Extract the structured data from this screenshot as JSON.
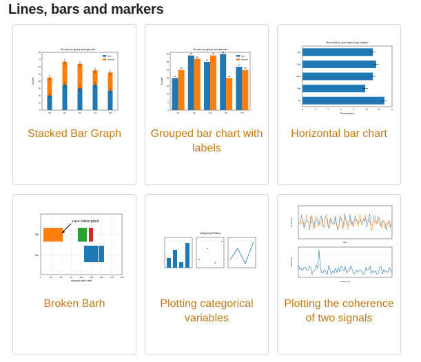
{
  "section": {
    "title": "Lines, bars and markers"
  },
  "cards": [
    {
      "caption": "Stacked Bar Graph",
      "thumb_title": "Scores by group and gender",
      "ylabel": "Scores",
      "legend": [
        "Men",
        "Women"
      ],
      "categories": [
        "G1",
        "G2",
        "G3",
        "G4",
        "G5"
      ],
      "yticks": [
        "0",
        "10",
        "20",
        "30",
        "40",
        "50",
        "60",
        "70",
        "80"
      ],
      "chart_data": {
        "type": "bar",
        "stacked": true,
        "categories": [
          "G1",
          "G2",
          "G3",
          "G4",
          "G5"
        ],
        "series": [
          {
            "name": "Men",
            "values": [
              20,
              35,
              30,
              35,
              27
            ]
          },
          {
            "name": "Women",
            "values": [
              25,
              32,
              34,
              20,
              25
            ]
          }
        ],
        "ylim": [
          0,
          80
        ]
      }
    },
    {
      "caption": "Grouped bar chart with labels",
      "thumb_title": "Scores by group and gender",
      "ylabel": "Scores",
      "legend": [
        "Men",
        "Women"
      ],
      "categories": [
        "G1",
        "G2",
        "G3",
        "G4",
        "G5"
      ],
      "yticks": [
        "0",
        "5",
        "10",
        "15",
        "20",
        "25",
        "30",
        "35"
      ],
      "chart_data": {
        "type": "bar",
        "categories": [
          "G1",
          "G2",
          "G3",
          "G4",
          "G5"
        ],
        "series": [
          {
            "name": "Men",
            "values": [
              20,
              34,
              30,
              35,
              27
            ]
          },
          {
            "name": "Women",
            "values": [
              25,
              32,
              34,
              20,
              25
            ]
          }
        ],
        "ylim": [
          0,
          36
        ]
      }
    },
    {
      "caption": "Horizontal bar chart",
      "thumb_title": "How fast do you want to go today?",
      "xlabel": "Performance",
      "categories": [
        "Tom",
        "Dick",
        "Harry",
        "Slim",
        "Jim"
      ],
      "xticks": [
        "0",
        "2",
        "4",
        "6",
        "8",
        "10",
        "12",
        "14"
      ],
      "chart_data": {
        "type": "bar",
        "orientation": "horizontal",
        "categories": [
          "Tom",
          "Dick",
          "Harry",
          "Slim",
          "Jim"
        ],
        "values": [
          11,
          11.5,
          11,
          9.8,
          12.8
        ],
        "xlim": [
          0,
          14
        ]
      }
    },
    {
      "caption": "Broken Barh",
      "annotation": "race interrupted",
      "xlabel": "seconds since start",
      "yticks": [
        "Bill",
        "Jim"
      ],
      "xticks": [
        "0",
        "25",
        "50",
        "75",
        "100",
        "125",
        "150",
        "175",
        "200"
      ]
    },
    {
      "caption": "Plotting categorical variables",
      "thumb_title": "Categorical Plotting"
    },
    {
      "caption": "Plotting the coherence of two signals",
      "ylabel_top": "s1 and s2",
      "xlabel_top": "time",
      "ylabel_bottom": "coherence",
      "xlabel_bottom": "Frequency"
    }
  ],
  "colors": {
    "blue": "#1f77b4",
    "orange": "#ff7f0e",
    "green": "#2ca02c",
    "red": "#d62728",
    "link": "#c07a12"
  }
}
